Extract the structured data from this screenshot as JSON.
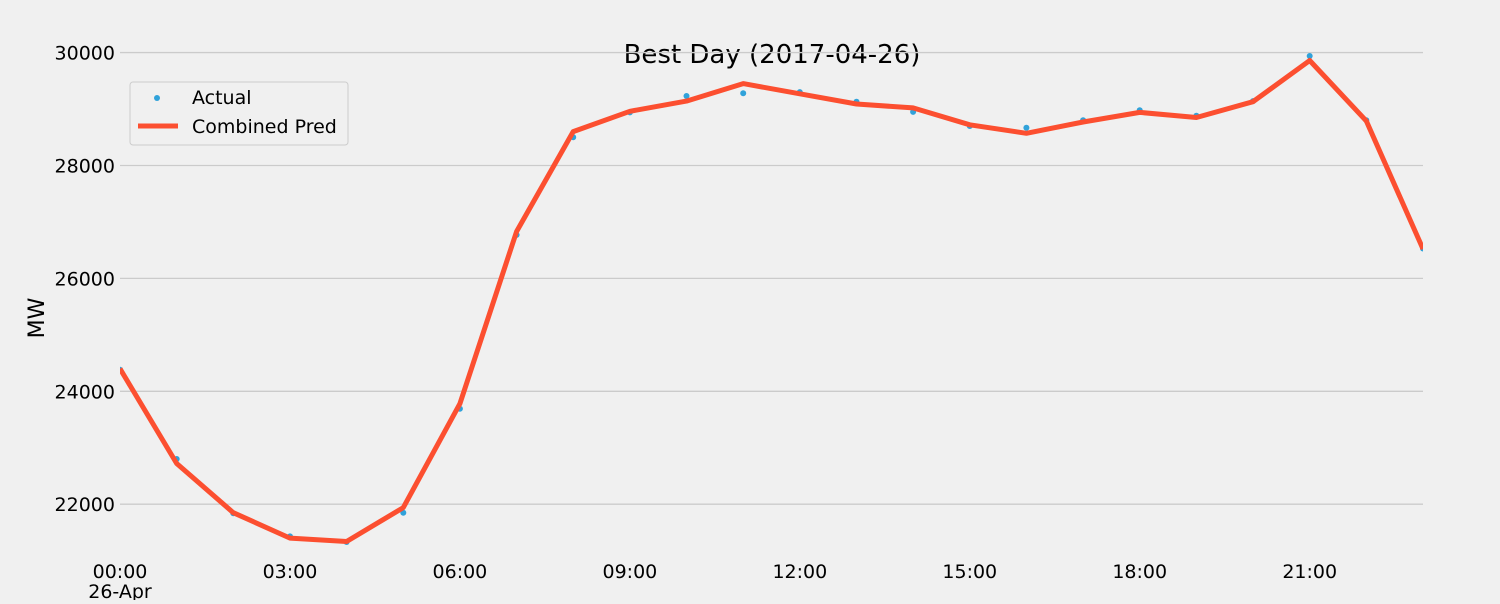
{
  "chart_data": {
    "type": "line",
    "title": "Best Day (2017-04-26)",
    "xlabel": "",
    "ylabel": "MW",
    "x_ticks": [
      "00:00",
      "03:00",
      "06:00",
      "09:00",
      "12:00",
      "15:00",
      "18:00",
      "21:00"
    ],
    "x_tick_hours": [
      0,
      3,
      6,
      9,
      12,
      15,
      18,
      21
    ],
    "x_sublabel": "26-Apr",
    "xlim_hours": [
      0,
      23
    ],
    "ylim": [
      21100,
      30400
    ],
    "y_ticks": [
      22000,
      24000,
      26000,
      28000,
      30000
    ],
    "y_tick_labels": [
      "22000",
      "24000",
      "26000",
      "28000",
      "30000"
    ],
    "grid": true,
    "legend_position": "top-left",
    "x_hours": [
      0,
      1,
      2,
      3,
      4,
      5,
      6,
      7,
      8,
      9,
      10,
      11,
      12,
      13,
      14,
      15,
      16,
      17,
      18,
      19,
      20,
      21,
      22,
      23
    ],
    "series": [
      {
        "name": "Actual",
        "style": "scatter",
        "color": "#30a2da",
        "values": [
          24380,
          22800,
          21840,
          21430,
          21330,
          21850,
          23690,
          26770,
          28500,
          28940,
          29230,
          29280,
          29300,
          29130,
          28950,
          28700,
          28670,
          28800,
          28980,
          28880,
          29140,
          29940,
          28800,
          26530
        ]
      },
      {
        "name": "Combined Pred",
        "style": "line",
        "color": "#fc4f30",
        "values": [
          24400,
          22720,
          21850,
          21400,
          21340,
          21940,
          23780,
          26830,
          28600,
          28960,
          29140,
          29450,
          29270,
          29090,
          29020,
          28720,
          28570,
          28770,
          28940,
          28850,
          29130,
          29860,
          28790,
          26520
        ]
      }
    ]
  }
}
